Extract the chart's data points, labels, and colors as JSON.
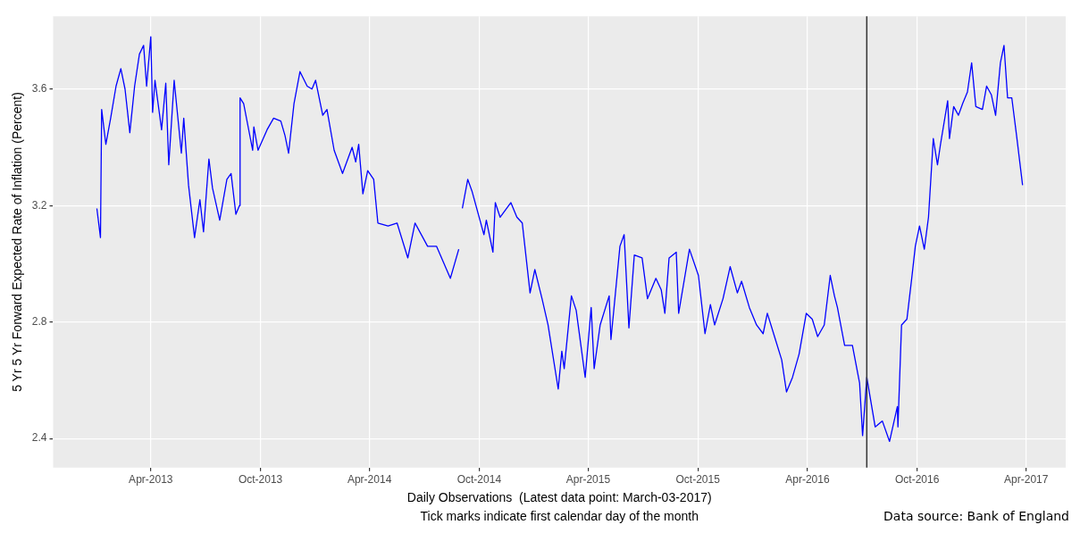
{
  "chart_data": {
    "type": "line",
    "xlabel": "Daily Observations  (Latest data point: March-03-2017)",
    "ylabel": "5 Yr 5 Yr Forward Expected Rate of Inflation (Percent)",
    "annotations": [
      "Tick marks indicate first calendar day of the month",
      "Data source: Bank of England"
    ],
    "x": [
      "2013-01-01",
      "2013-01-07",
      "2013-01-09",
      "2013-01-16",
      "2013-01-24",
      "2013-02-02",
      "2013-02-10",
      "2013-02-17",
      "2013-02-25",
      "2013-03-05",
      "2013-03-13",
      "2013-03-20",
      "2013-03-25",
      "2013-04-01",
      "2013-04-04",
      "2013-04-08",
      "2013-04-19",
      "2013-04-26",
      "2013-05-01",
      "2013-05-10",
      "2013-05-22",
      "2013-05-26",
      "2013-06-03",
      "2013-06-13",
      "2013-06-22",
      "2013-06-28",
      "2013-07-07",
      "2013-07-13",
      "2013-07-25",
      "2013-08-06",
      "2013-08-13",
      "2013-08-21",
      "2013-08-27",
      "2013-08-28",
      "2013-09-03",
      "2013-09-18",
      "2013-09-20",
      "2013-09-27",
      "2013-10-12",
      "2013-10-23",
      "2013-11-04",
      "2013-11-11",
      "2013-11-17",
      "2013-11-26",
      "2013-12-06",
      "2013-12-18",
      "2013-12-26",
      "2014-01-01",
      "2014-01-13",
      "2014-01-20",
      "2014-02-01",
      "2014-02-15",
      "2014-03-03",
      "2014-03-09",
      "2014-03-14",
      "2014-03-21",
      "2014-03-29",
      "2014-04-08",
      "2014-04-15",
      "2014-05-02",
      "2014-05-17",
      "2014-06-04",
      "2014-06-16",
      "2014-07-07",
      "2014-07-22",
      "2014-08-14",
      "2014-08-28",
      "2014-08-31",
      "2014-09-03",
      "2014-09-12",
      "2014-09-19",
      "2014-10-09",
      "2014-10-13",
      "2014-10-24",
      "2014-10-28",
      "2014-11-05",
      "2014-11-23",
      "2014-12-03",
      "2014-12-12",
      "2014-12-25",
      "2015-01-02",
      "2015-01-14",
      "2015-01-24",
      "2015-02-10",
      "2015-02-16",
      "2015-02-20",
      "2015-03-04",
      "2015-03-12",
      "2015-03-27",
      "2015-04-06",
      "2015-04-11",
      "2015-04-21",
      "2015-05-06",
      "2015-05-09",
      "2015-05-24",
      "2015-05-31",
      "2015-06-08",
      "2015-06-17",
      "2015-06-30",
      "2015-07-09",
      "2015-07-23",
      "2015-08-01",
      "2015-08-07",
      "2015-08-14",
      "2015-08-26",
      "2015-08-30",
      "2015-09-17",
      "2015-10-02",
      "2015-10-13",
      "2015-10-22",
      "2015-10-29",
      "2015-11-12",
      "2015-11-24",
      "2015-12-06",
      "2015-12-13",
      "2015-12-26",
      "2016-01-07",
      "2016-01-18",
      "2016-01-25",
      "2016-02-06",
      "2016-02-18",
      "2016-02-26",
      "2016-03-07",
      "2016-03-18",
      "2016-03-30",
      "2016-04-09",
      "2016-04-18",
      "2016-04-29",
      "2016-05-09",
      "2016-05-16",
      "2016-05-21",
      "2016-06-02",
      "2016-06-15",
      "2016-06-27",
      "2016-07-02",
      "2016-07-09",
      "2016-07-23",
      "2016-08-04",
      "2016-08-16",
      "2016-08-29",
      "2016-08-30",
      "2016-09-05",
      "2016-09-14",
      "2016-09-22",
      "2016-09-28",
      "2016-10-05",
      "2016-10-13",
      "2016-10-20",
      "2016-10-28",
      "2016-11-04",
      "2016-11-09",
      "2016-11-21",
      "2016-11-24",
      "2016-12-01",
      "2016-12-09",
      "2016-12-16",
      "2016-12-24",
      "2016-12-31",
      "2017-01-07",
      "2017-01-18",
      "2017-01-25",
      "2017-02-02",
      "2017-02-09",
      "2017-02-17",
      "2017-02-23",
      "2017-03-01",
      "2017-03-08",
      "2017-03-16",
      "2017-03-26"
    ],
    "series": [
      {
        "color": "#0000ff",
        "values": [
          3.19,
          3.09,
          3.53,
          3.41,
          3.5,
          3.61,
          3.67,
          3.6,
          3.45,
          3.61,
          3.72,
          3.75,
          3.61,
          3.78,
          3.52,
          3.63,
          3.46,
          3.62,
          3.34,
          3.63,
          3.38,
          3.5,
          3.27,
          3.09,
          3.22,
          3.11,
          3.36,
          3.26,
          3.15,
          3.29,
          3.31,
          3.17,
          3.2,
          3.57,
          3.55,
          3.39,
          3.47,
          3.39,
          3.46,
          3.5,
          3.49,
          3.44,
          3.38,
          3.55,
          3.66,
          3.61,
          3.6,
          3.63,
          3.51,
          3.53,
          3.39,
          3.31,
          3.4,
          3.35,
          3.41,
          3.24,
          3.32,
          3.29,
          3.14,
          3.13,
          3.14,
          3.02,
          3.14,
          3.06,
          3.06,
          2.95,
          3.05,
          null,
          3.19,
          3.29,
          3.25,
          3.1,
          3.15,
          3.04,
          3.21,
          3.16,
          3.21,
          3.16,
          3.14,
          2.9,
          2.98,
          2.88,
          2.79,
          2.57,
          2.7,
          2.64,
          2.89,
          2.84,
          2.61,
          2.85,
          2.64,
          2.79,
          2.89,
          2.74,
          3.06,
          3.1,
          2.78,
          3.03,
          3.02,
          2.88,
          2.95,
          2.91,
          2.83,
          3.02,
          3.04,
          2.83,
          3.05,
          2.96,
          2.76,
          2.86,
          2.79,
          2.88,
          2.99,
          2.9,
          2.94,
          2.85,
          2.79,
          2.76,
          2.83,
          2.75,
          2.67,
          2.56,
          2.61,
          2.69,
          2.83,
          2.81,
          2.75,
          2.79,
          2.96,
          2.89,
          2.85,
          2.72,
          2.72,
          2.59,
          2.41,
          2.61,
          2.44,
          2.46,
          2.39,
          2.51,
          2.44,
          2.79,
          2.81,
          2.95,
          3.06,
          3.13,
          3.05,
          3.16,
          3.43,
          3.34,
          3.41,
          3.56,
          3.43,
          3.54,
          3.51,
          3.55,
          3.59,
          3.69,
          3.54,
          3.53,
          3.61,
          3.58,
          3.51,
          3.69,
          3.75,
          3.57,
          3.57,
          3.44,
          3.27
        ]
      }
    ],
    "xlim": [
      "2012-10-20",
      "2017-06-06"
    ],
    "xticks": [
      {
        "value": "2013-04-01",
        "label": "Apr-2013"
      },
      {
        "value": "2013-10-01",
        "label": "Oct-2013"
      },
      {
        "value": "2014-04-01",
        "label": "Apr-2014"
      },
      {
        "value": "2014-10-01",
        "label": "Oct-2014"
      },
      {
        "value": "2015-04-01",
        "label": "Apr-2015"
      },
      {
        "value": "2015-10-01",
        "label": "Oct-2015"
      },
      {
        "value": "2016-04-01",
        "label": "Apr-2016"
      },
      {
        "value": "2016-10-01",
        "label": "Oct-2016"
      },
      {
        "value": "2017-04-01",
        "label": "Apr-2017"
      }
    ],
    "ylim": [
      2.3,
      3.85
    ],
    "yticks": [
      2.4,
      2.8,
      3.2,
      3.6
    ],
    "ref_lines": [
      {
        "axis": "x",
        "value": "2016-07-09",
        "color": "#333333"
      }
    ],
    "grid": true,
    "legend": false,
    "marker": "none",
    "line_style": "solid"
  }
}
